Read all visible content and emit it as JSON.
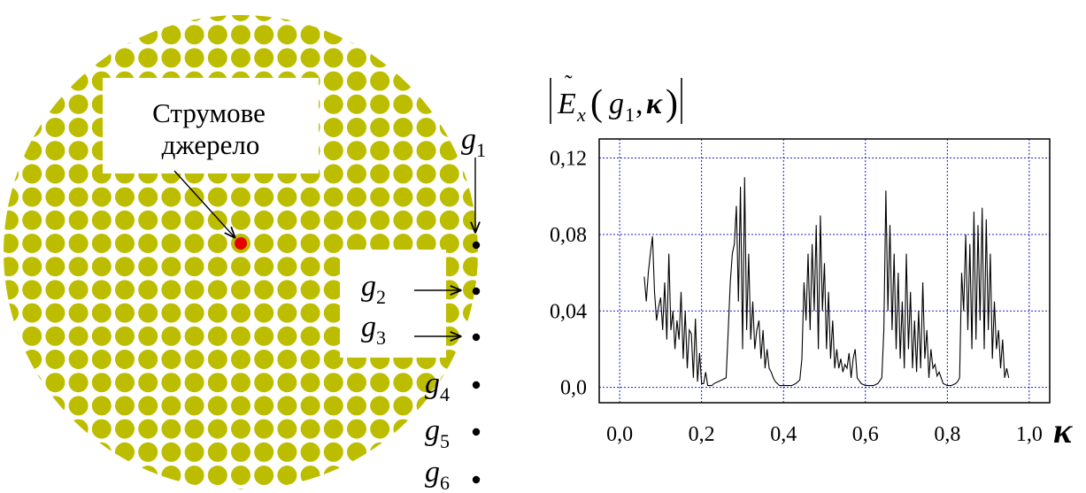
{
  "crystal": {
    "dot_color": "#BDBD00",
    "source_color": "#E60000",
    "source_label_line1": "Струмове",
    "source_label_line2": "джерело",
    "probes": [
      {
        "name": "g",
        "sub": "1"
      },
      {
        "name": "g",
        "sub": "2"
      },
      {
        "name": "g",
        "sub": "3"
      },
      {
        "name": "g",
        "sub": "4"
      },
      {
        "name": "g",
        "sub": "5"
      },
      {
        "name": "g",
        "sub": "6"
      }
    ]
  },
  "chart_data": {
    "type": "line",
    "title": "|Ẽx(g1,κ)|",
    "title_parts": {
      "E": "E",
      "sub": "x",
      "g": "g",
      "g_sub": "1",
      "kappa": "κ"
    },
    "xlabel": "κ",
    "ylabel": "",
    "xlim": [
      -0.05,
      1.05
    ],
    "ylim": [
      -0.008,
      0.13
    ],
    "xticks": [
      "0,0",
      "0,2",
      "0,4",
      "0,6",
      "0,8",
      "1,0"
    ],
    "yticks": [
      "0,0",
      "0,04",
      "0,08",
      "0,12"
    ],
    "grid": true,
    "grid_color": "#0000CC",
    "line_color": "#000000",
    "series": [
      {
        "name": "",
        "x": [
          0.06,
          0.065,
          0.07,
          0.075,
          0.08,
          0.085,
          0.09,
          0.095,
          0.1,
          0.105,
          0.11,
          0.115,
          0.12,
          0.125,
          0.13,
          0.135,
          0.14,
          0.145,
          0.15,
          0.155,
          0.16,
          0.165,
          0.17,
          0.175,
          0.18,
          0.185,
          0.19,
          0.195,
          0.2,
          0.205,
          0.21,
          0.215,
          0.22,
          0.225,
          0.23,
          0.24,
          0.25,
          0.26,
          0.265,
          0.27,
          0.275,
          0.28,
          0.285,
          0.29,
          0.295,
          0.3,
          0.305,
          0.31,
          0.315,
          0.32,
          0.325,
          0.33,
          0.335,
          0.34,
          0.345,
          0.35,
          0.355,
          0.36,
          0.365,
          0.37,
          0.375,
          0.38,
          0.385,
          0.39,
          0.395,
          0.4,
          0.41,
          0.42,
          0.43,
          0.44,
          0.445,
          0.45,
          0.455,
          0.46,
          0.465,
          0.47,
          0.475,
          0.48,
          0.485,
          0.49,
          0.495,
          0.5,
          0.505,
          0.51,
          0.515,
          0.52,
          0.525,
          0.53,
          0.535,
          0.54,
          0.545,
          0.55,
          0.555,
          0.56,
          0.565,
          0.57,
          0.575,
          0.58,
          0.59,
          0.6,
          0.61,
          0.62,
          0.63,
          0.64,
          0.645,
          0.65,
          0.655,
          0.66,
          0.665,
          0.67,
          0.675,
          0.68,
          0.685,
          0.69,
          0.695,
          0.7,
          0.705,
          0.71,
          0.715,
          0.72,
          0.725,
          0.73,
          0.735,
          0.74,
          0.745,
          0.75,
          0.755,
          0.76,
          0.765,
          0.77,
          0.775,
          0.78,
          0.79,
          0.8,
          0.81,
          0.82,
          0.825,
          0.83,
          0.835,
          0.84,
          0.845,
          0.85,
          0.855,
          0.86,
          0.865,
          0.87,
          0.875,
          0.88,
          0.885,
          0.89,
          0.895,
          0.9,
          0.905,
          0.91,
          0.915,
          0.92,
          0.925,
          0.93,
          0.935,
          0.94,
          0.945,
          0.95
        ],
        "values": [
          0.058,
          0.045,
          0.06,
          0.07,
          0.079,
          0.05,
          0.035,
          0.042,
          0.047,
          0.03,
          0.055,
          0.025,
          0.07,
          0.03,
          0.04,
          0.02,
          0.035,
          0.025,
          0.05,
          0.015,
          0.04,
          0.01,
          0.03,
          0.028,
          0.005,
          0.036,
          0.003,
          0.018,
          0.002,
          0.002,
          0.008,
          0.001,
          0.001,
          0.001,
          0.002,
          0.003,
          0.004,
          0.005,
          0.03,
          0.055,
          0.07,
          0.075,
          0.095,
          0.045,
          0.105,
          0.02,
          0.11,
          0.03,
          0.07,
          0.025,
          0.045,
          0.02,
          0.03,
          0.035,
          0.015,
          0.03,
          0.01,
          0.02,
          0.01,
          0.008,
          0.005,
          0.003,
          0.002,
          0.001,
          0.001,
          0.001,
          0.001,
          0.001,
          0.002,
          0.004,
          0.015,
          0.055,
          0.035,
          0.07,
          0.03,
          0.075,
          0.04,
          0.085,
          0.02,
          0.09,
          0.04,
          0.065,
          0.02,
          0.05,
          0.015,
          0.035,
          0.01,
          0.02,
          0.01,
          0.015,
          0.008,
          0.012,
          0.01,
          0.018,
          0.005,
          0.015,
          0.02,
          0.005,
          0.002,
          0.001,
          0.001,
          0.001,
          0.002,
          0.005,
          0.03,
          0.103,
          0.04,
          0.085,
          0.03,
          0.07,
          0.02,
          0.06,
          0.015,
          0.045,
          0.01,
          0.07,
          0.02,
          0.05,
          0.01,
          0.035,
          0.008,
          0.04,
          0.01,
          0.055,
          0.015,
          0.03,
          0.005,
          0.02,
          0.01,
          0.012,
          0.006,
          0.008,
          0.002,
          0.001,
          0.001,
          0.002,
          0.003,
          0.005,
          0.06,
          0.04,
          0.08,
          0.03,
          0.075,
          0.02,
          0.092,
          0.025,
          0.085,
          0.035,
          0.094,
          0.02,
          0.088,
          0.03,
          0.07,
          0.015,
          0.045,
          0.02,
          0.03,
          0.01,
          0.025,
          0.005,
          0.01,
          0.005
        ]
      }
    ]
  }
}
